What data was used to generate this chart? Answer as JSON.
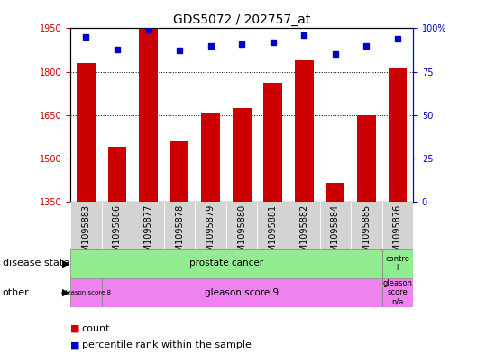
{
  "title": "GDS5072 / 202757_at",
  "samples": [
    "GSM1095883",
    "GSM1095886",
    "GSM1095877",
    "GSM1095878",
    "GSM1095879",
    "GSM1095880",
    "GSM1095881",
    "GSM1095882",
    "GSM1095884",
    "GSM1095885",
    "GSM1095876"
  ],
  "counts": [
    1830,
    1540,
    1950,
    1560,
    1660,
    1675,
    1760,
    1840,
    1415,
    1650,
    1815
  ],
  "percentile_ranks": [
    95,
    88,
    99,
    87,
    90,
    91,
    92,
    96,
    85,
    90,
    94
  ],
  "ylim_left": [
    1350,
    1950
  ],
  "ylim_right": [
    0,
    100
  ],
  "yticks_left": [
    1350,
    1500,
    1650,
    1800,
    1950
  ],
  "yticks_right": [
    0,
    25,
    50,
    75,
    100
  ],
  "bar_color": "#cc0000",
  "dot_color": "#0000cc",
  "bar_width": 0.6,
  "background_color": "#ffffff",
  "axis_left_color": "#cc0000",
  "axis_right_color": "#0000cc",
  "grid_color": "#000000",
  "tick_bg_color": "#d3d3d3",
  "prostate_color": "#90EE90",
  "control_color": "#90EE90",
  "gleason_color": "#EE82EE",
  "legend_sq_size": 8,
  "title_fontsize": 10,
  "tick_fontsize": 7,
  "label_fontsize": 8,
  "annotation_fontsize": 7.5,
  "small_fontsize": 6
}
